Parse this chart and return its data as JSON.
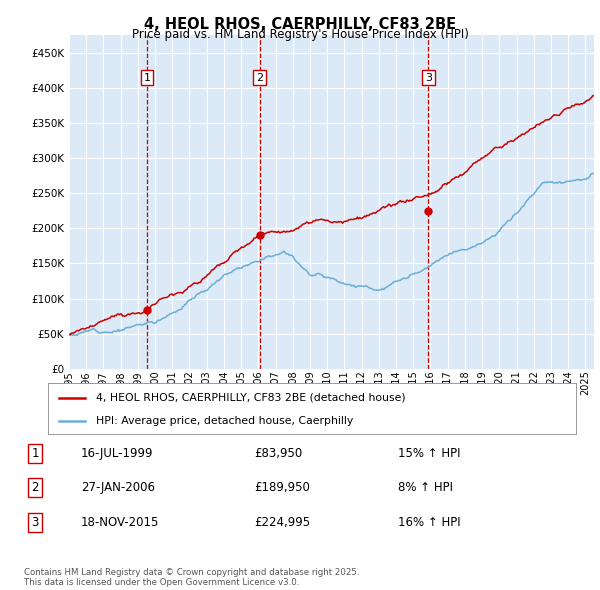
{
  "title": "4, HEOL RHOS, CAERPHILLY, CF83 2BE",
  "subtitle": "Price paid vs. HM Land Registry's House Price Index (HPI)",
  "ylim": [
    0,
    475000
  ],
  "yticks": [
    0,
    50000,
    100000,
    150000,
    200000,
    250000,
    300000,
    350000,
    400000,
    450000
  ],
  "background_color": "#dce9f7",
  "grid_color": "#ffffff",
  "sale_color": "#cc0000",
  "hpi_color": "#6baed6",
  "vline_color": "#cc0000",
  "label_box_color": "#cc0000",
  "transactions": [
    {
      "date_num": 1999.54,
      "price": 83950,
      "label": "1"
    },
    {
      "date_num": 2006.07,
      "price": 189950,
      "label": "2"
    },
    {
      "date_num": 2015.88,
      "price": 224995,
      "label": "3"
    }
  ],
  "transaction_table": [
    {
      "num": "1",
      "date": "16-JUL-1999",
      "price": "£83,950",
      "hpi": "15% ↑ HPI"
    },
    {
      "num": "2",
      "date": "27-JAN-2006",
      "price": "£189,950",
      "hpi": "8% ↑ HPI"
    },
    {
      "num": "3",
      "date": "18-NOV-2015",
      "price": "£224,995",
      "hpi": "16% ↑ HPI"
    }
  ],
  "legend_entries": [
    "4, HEOL RHOS, CAERPHILLY, CF83 2BE (detached house)",
    "HPI: Average price, detached house, Caerphilly"
  ],
  "footer": "Contains HM Land Registry data © Crown copyright and database right 2025.\nThis data is licensed under the Open Government Licence v3.0."
}
